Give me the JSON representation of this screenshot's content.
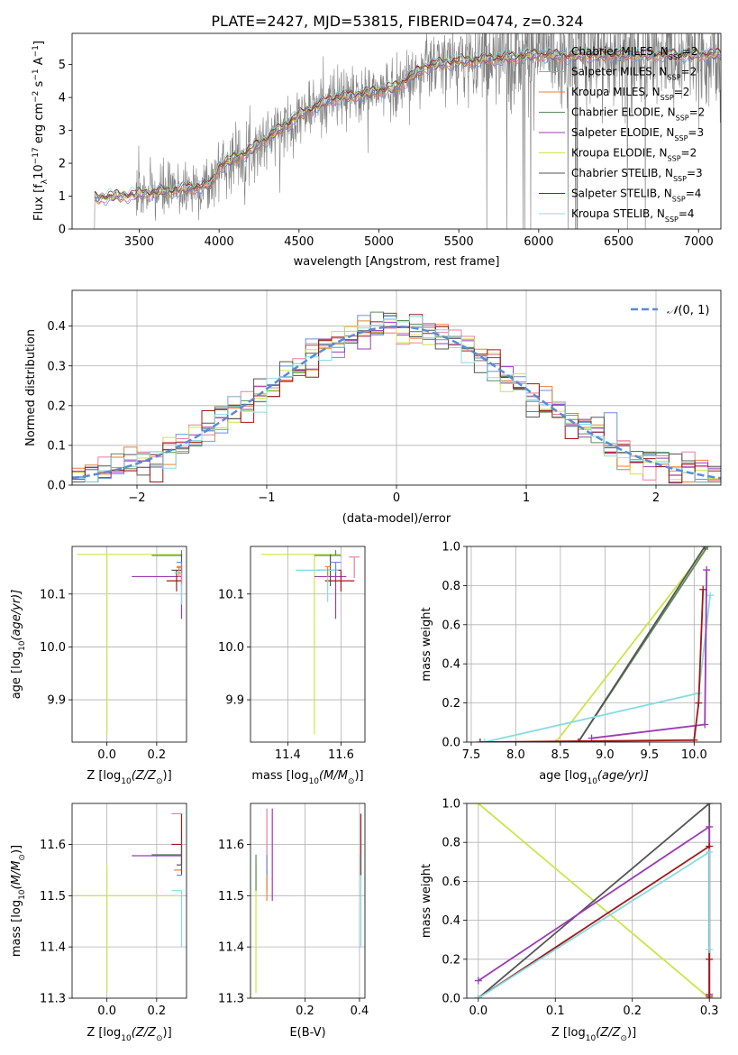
{
  "title": "PLATE=2427, MJD=53815, FIBERID=0474, z=0.324",
  "colors": {
    "Chabrier MILES": "#6a8fd8",
    "Salpeter MILES": "#e87fa3",
    "Kroupa MILES": "#e8823a",
    "Chabrier ELODIE": "#5e8a5e",
    "Salpeter ELODIE": "#9a3cb4",
    "Kroupa ELODIE": "#c9e64a",
    "Chabrier STELIB": "#555555",
    "Salpeter STELIB": "#a01818",
    "Kroupa STELIB": "#86dce0",
    "data": "#808080",
    "gauss": "#5b8bd6"
  },
  "chart_data": [
    {
      "type": "line",
      "xlabel": "wavelength [Angstrom, rest frame]",
      "ylabel": "Flux [f",
      "ylabel_sub": "λ",
      "ylabel_mid": "10",
      "ylabel_exp1": "−17",
      "ylabel_mid2": " erg cm",
      "ylabel_exp2": "−2",
      "ylabel_mid3": " s",
      "ylabel_exp3": "−1",
      "ylabel_mid4": " A",
      "ylabel_exp4": "−1",
      "ylabel_end": "]",
      "xlim": [
        3080,
        7140
      ],
      "ylim": [
        0,
        5.95
      ],
      "xticks": [
        "3500",
        "4000",
        "4500",
        "5000",
        "5500",
        "6000",
        "6500",
        "7000"
      ],
      "xtick_values": [
        3500,
        4000,
        4500,
        5000,
        5500,
        6000,
        6500,
        7000
      ],
      "yticks": [
        "0",
        "1",
        "2",
        "3",
        "4",
        "5"
      ],
      "ytick_values": [
        0,
        1,
        2,
        3,
        4,
        5
      ],
      "grid": false,
      "legend": "top-right",
      "continuum": {
        "x": [
          3220,
          3500,
          3700,
          3950,
          4000,
          4200,
          4500,
          4700,
          4900,
          5100,
          5300,
          5500,
          5800,
          6000,
          6200,
          6500,
          6800,
          7100
        ],
        "y": [
          0.95,
          1.05,
          1.15,
          1.35,
          1.9,
          2.4,
          3.45,
          3.95,
          4.1,
          4.3,
          4.95,
          5.1,
          5.2,
          5.3,
          5.25,
          5.3,
          5.3,
          5.3
        ]
      },
      "series": [
        {
          "name": "Chabrier MILES",
          "nssp": "2"
        },
        {
          "name": "Salpeter MILES",
          "nssp": "2"
        },
        {
          "name": "Kroupa MILES",
          "nssp": "2"
        },
        {
          "name": "Chabrier ELODIE",
          "nssp": "2"
        },
        {
          "name": "Salpeter ELODIE",
          "nssp": "3"
        },
        {
          "name": "Kroupa ELODIE",
          "nssp": "2"
        },
        {
          "name": "Chabrier STELIB",
          "nssp": "3"
        },
        {
          "name": "Salpeter STELIB",
          "nssp": "4"
        },
        {
          "name": "Kroupa STELIB",
          "nssp": "4"
        }
      ],
      "legend_prefix": ", N",
      "legend_sub": "SSP",
      "legend_eq": "="
    },
    {
      "type": "bar",
      "xlabel": "(data-model)/error",
      "ylabel": "Normed distribution",
      "xlim": [
        -2.5,
        2.5
      ],
      "ylim": [
        0,
        0.49
      ],
      "xticks": [
        "−2",
        "−1",
        "0",
        "1",
        "2"
      ],
      "xtick_values": [
        -2,
        -1,
        0,
        1,
        2
      ],
      "yticks": [
        "0.0",
        "0.1",
        "0.2",
        "0.3",
        "0.4"
      ],
      "ytick_values": [
        0,
        0.1,
        0.2,
        0.3,
        0.4
      ],
      "grid": true,
      "legend": "top-right",
      "gauss_label_N": "𝒩",
      "gauss_label_args": "(0, 1)",
      "bin_width": 0.1,
      "bin_start": -2.5
    },
    {
      "type": "scatter",
      "xlabel": "Z [log",
      "xlabel_sub": "10",
      "xlabel_rest": "(Z/Z",
      "xlabel_sun": "⊙",
      "xlabel_end": ")]",
      "ylabel": "age  [log",
      "ylabel_sub": "10",
      "ylabel_rest": "(age/yr)]",
      "xlim": [
        -0.14,
        0.32
      ],
      "ylim": [
        9.82,
        10.19
      ],
      "xticks": [
        "0.0",
        "0.2"
      ],
      "xtick_values": [
        0,
        0.2
      ],
      "yticks": [
        "9.9",
        "10.0",
        "10.1"
      ],
      "ytick_values": [
        9.9,
        10.0,
        10.1
      ],
      "grid": true,
      "points": [
        {
          "s": "Kroupa ELODIE",
          "x": 0.0,
          "y": 10.175,
          "xe": [
            0.12,
            0.3
          ],
          "ye": [
            0.34,
            0.0
          ]
        },
        {
          "s": "Chabrier ELODIE",
          "x": 0.3,
          "y": 10.173,
          "xe": [
            0.12,
            0.0
          ],
          "ye": [
            0.0,
            0.01
          ]
        },
        {
          "s": "Salpeter ELODIE",
          "x": 0.3,
          "y": 10.133,
          "xe": [
            0.2,
            0.0
          ],
          "ye": [
            0.08,
            0.02
          ]
        },
        {
          "s": "Chabrier STELIB",
          "x": 0.3,
          "y": 10.145,
          "xe": [
            0.04,
            0.0
          ],
          "ye": [
            0.03,
            0.03
          ]
        },
        {
          "s": "Salpeter STELIB",
          "x": 0.28,
          "y": 10.125,
          "xe": [
            0.04,
            0.02
          ],
          "ye": [
            0.02,
            0.02
          ]
        },
        {
          "s": "Kroupa STELIB",
          "x": 0.3,
          "y": 10.14,
          "xe": [
            0.03,
            0.0
          ],
          "ye": [
            0.06,
            0.0
          ]
        },
        {
          "s": "Salpeter MILES",
          "x": 0.3,
          "y": 10.15,
          "xe": [
            0.02,
            0.0
          ],
          "ye": [
            0.03,
            0.0
          ]
        },
        {
          "s": "Chabrier MILES",
          "x": 0.3,
          "y": 10.16,
          "xe": [
            0.02,
            0.0
          ],
          "ye": [
            0.02,
            0.0
          ]
        },
        {
          "s": "Kroupa MILES",
          "x": 0.29,
          "y": 10.152,
          "xe": [
            0.01,
            0.01
          ],
          "ye": [
            0.02,
            0.0
          ]
        }
      ]
    },
    {
      "type": "scatter",
      "xlabel": "mass [log",
      "xlabel_sub": "10",
      "xlabel_rest": "(M/M",
      "xlabel_sun": "⊙",
      "xlabel_end": ")]",
      "xlim": [
        11.26,
        11.69
      ],
      "ylim": [
        9.82,
        10.19
      ],
      "xticks": [
        "11.4",
        "11.6"
      ],
      "xtick_values": [
        11.4,
        11.6
      ],
      "yticks": [
        "9.9",
        "10.0",
        "10.1"
      ],
      "ytick_values": [
        9.9,
        10.0,
        10.1
      ],
      "grid": true,
      "points": [
        {
          "s": "Kroupa ELODIE",
          "x": 11.5,
          "y": 10.175,
          "xe": [
            0.2,
            0.1
          ],
          "ye": [
            0.34,
            0.0
          ]
        },
        {
          "s": "Chabrier ELODIE",
          "x": 11.58,
          "y": 10.173,
          "xe": [
            0.08,
            0.02
          ],
          "ye": [
            0.0,
            0.01
          ]
        },
        {
          "s": "Salpeter ELODIE",
          "x": 11.58,
          "y": 10.133,
          "xe": [
            0.08,
            0.04
          ],
          "ye": [
            0.08,
            0.02
          ]
        },
        {
          "s": "Chabrier STELIB",
          "x": 11.56,
          "y": 10.145,
          "xe": [
            0.05,
            0.04
          ],
          "ye": [
            0.03,
            0.03
          ]
        },
        {
          "s": "Salpeter STELIB",
          "x": 11.6,
          "y": 10.125,
          "xe": [
            0.06,
            0.05
          ],
          "ye": [
            0.02,
            0.02
          ]
        },
        {
          "s": "Kroupa STELIB",
          "x": 11.55,
          "y": 10.145,
          "xe": [
            0.12,
            0.04
          ],
          "ye": [
            0.06,
            0.0
          ]
        },
        {
          "s": "Salpeter MILES",
          "x": 11.65,
          "y": 10.17,
          "xe": [
            0.02,
            0.02
          ],
          "ye": [
            0.04,
            0.0
          ]
        },
        {
          "s": "Chabrier MILES",
          "x": 11.58,
          "y": 10.16,
          "xe": [
            0.02,
            0.02
          ],
          "ye": [
            0.02,
            0.0
          ]
        },
        {
          "s": "Kroupa MILES",
          "x": 11.55,
          "y": 10.152,
          "xe": [
            0.01,
            0.01
          ],
          "ye": [
            0.02,
            0.0
          ]
        }
      ]
    },
    {
      "type": "line",
      "xlabel": "age  [log",
      "xlabel_sub": "10",
      "xlabel_rest": "(age/yr)]",
      "ylabel": "mass weight",
      "xlim": [
        7.45,
        10.3
      ],
      "ylim": [
        0,
        1.0
      ],
      "xticks": [
        "7.5",
        "8.0",
        "8.5",
        "9.0",
        "9.5",
        "10.0"
      ],
      "xtick_values": [
        7.5,
        8.0,
        8.5,
        9.0,
        9.5,
        10.0
      ],
      "yticks": [
        "0.0",
        "0.2",
        "0.4",
        "0.6",
        "0.8",
        "1.0"
      ],
      "ytick_values": [
        0,
        0.2,
        0.4,
        0.6,
        0.8,
        1.0
      ],
      "grid": true,
      "series": [
        {
          "s": "Kroupa ELODIE",
          "x": [
            8.45,
            10.15
          ],
          "y": [
            0.0,
            1.0
          ]
        },
        {
          "s": "Chabrier ELODIE",
          "x": [
            8.7,
            10.15
          ],
          "y": [
            0.0,
            1.0
          ]
        },
        {
          "s": "Chabrier STELIB",
          "x": [
            8.7,
            10.12
          ],
          "y": [
            0.0,
            1.0
          ]
        },
        {
          "s": "Kroupa STELIB",
          "x": [
            7.65,
            10.05,
            10.18
          ],
          "y": [
            0.0,
            0.25,
            0.75
          ]
        },
        {
          "s": "Salpeter ELODIE",
          "x": [
            8.85,
            10.12,
            10.14
          ],
          "y": [
            0.02,
            0.09,
            0.88
          ]
        },
        {
          "s": "Salpeter STELIB",
          "x": [
            7.6,
            10.0,
            10.05,
            10.1
          ],
          "y": [
            0.0,
            0.01,
            0.2,
            0.78
          ]
        }
      ]
    },
    {
      "type": "scatter",
      "xlabel": "Z [log",
      "xlabel_sub": "10",
      "xlabel_rest": "(Z/Z",
      "xlabel_sun": "⊙",
      "xlabel_end": ")]",
      "ylabel": "mass [log",
      "ylabel_sub": "10",
      "ylabel_rest": "(M/M",
      "ylabel_sun": "⊙",
      "ylabel_end": ")]",
      "xlim": [
        -0.14,
        0.32
      ],
      "ylim": [
        11.3,
        11.68
      ],
      "xticks": [
        "0.0",
        "0.2"
      ],
      "xtick_values": [
        0,
        0.2
      ],
      "yticks": [
        "11.3",
        "11.4",
        "11.5",
        "11.6"
      ],
      "ytick_values": [
        11.3,
        11.4,
        11.5,
        11.6
      ],
      "grid": true,
      "points": [
        {
          "s": "Kroupa ELODIE",
          "x": 0.0,
          "y": 11.5,
          "xe": [
            0.12,
            0.3
          ],
          "ye": [
            0.19,
            0.06
          ]
        },
        {
          "s": "Salpeter ELODIE",
          "x": 0.3,
          "y": 11.578,
          "xe": [
            0.2,
            0.0
          ],
          "ye": [
            0.0,
            0.0
          ]
        },
        {
          "s": "Chabrier ELODIE",
          "x": 0.3,
          "y": 11.58,
          "xe": [
            0.12,
            0.0
          ],
          "ye": [
            0.0,
            0.0
          ]
        },
        {
          "s": "Salpeter STELIB",
          "x": 0.3,
          "y": 11.6,
          "xe": [
            0.04,
            0.0
          ],
          "ye": [
            0.04,
            0.06
          ]
        },
        {
          "s": "Salpeter MILES",
          "x": 0.3,
          "y": 11.66,
          "xe": [
            0.04,
            0.0
          ],
          "ye": [
            0.0,
            0.0
          ]
        },
        {
          "s": "Kroupa MILES",
          "x": 0.29,
          "y": 11.55,
          "xe": [
            0.02,
            0.01
          ],
          "ye": [
            0.0,
            0.0
          ]
        },
        {
          "s": "Chabrier STELIB",
          "x": 0.3,
          "y": 11.56,
          "xe": [
            0.02,
            0.0
          ],
          "ye": [
            0.02,
            0.05
          ]
        },
        {
          "s": "Kroupa STELIB",
          "x": 0.3,
          "y": 11.51,
          "xe": [
            0.04,
            0.0
          ],
          "ye": [
            0.11,
            0.0
          ]
        },
        {
          "s": "Chabrier MILES",
          "x": 0.3,
          "y": 11.54,
          "xe": [
            0.02,
            0.0
          ],
          "ye": [
            0.0,
            0.0
          ]
        }
      ]
    },
    {
      "type": "scatter",
      "xlabel": "E(B-V)",
      "xlim": [
        0.0,
        0.42
      ],
      "ylim": [
        11.3,
        11.68
      ],
      "xticks": [
        "0.2",
        "0.4"
      ],
      "xtick_values": [
        0.2,
        0.4
      ],
      "yticks": [
        "11.3",
        "11.4",
        "11.5",
        "11.6"
      ],
      "ytick_values": [
        11.3,
        11.4,
        11.5,
        11.6
      ],
      "grid": true,
      "points": [
        {
          "s": "Kroupa ELODIE",
          "x": 0.02,
          "y": 11.44,
          "xe": [
            0,
            0
          ],
          "ye": [
            0.13,
            0.12
          ]
        },
        {
          "s": "Chabrier ELODIE",
          "x": 0.02,
          "y": 11.55,
          "xe": [
            0,
            0
          ],
          "ye": [
            0.04,
            0.03
          ]
        },
        {
          "s": "Salpeter MILES",
          "x": 0.06,
          "y": 11.6,
          "xe": [
            0,
            0
          ],
          "ye": [
            0.09,
            0.07
          ]
        },
        {
          "s": "Kroupa MILES",
          "x": 0.06,
          "y": 11.52,
          "xe": [
            0,
            0
          ],
          "ye": [
            0.03,
            0.03
          ]
        },
        {
          "s": "Salpeter ELODIE",
          "x": 0.08,
          "y": 11.58,
          "xe": [
            0,
            0
          ],
          "ye": [
            0.09,
            0.09
          ]
        },
        {
          "s": "Chabrier MILES",
          "x": 0.06,
          "y": 11.56,
          "xe": [
            0,
            0
          ],
          "ye": [
            0.02,
            0.02
          ]
        },
        {
          "s": "Salpeter STELIB",
          "x": 0.405,
          "y": 11.6,
          "xe": [
            0,
            0
          ],
          "ye": [
            0.06,
            0.06
          ]
        },
        {
          "s": "Kroupa STELIB",
          "x": 0.405,
          "y": 11.48,
          "xe": [
            0,
            0
          ],
          "ye": [
            0.08,
            0.07
          ]
        },
        {
          "s": "Chabrier STELIB",
          "x": 0.405,
          "y": 11.56,
          "xe": [
            0,
            0
          ],
          "ye": [
            0.02,
            0.02
          ]
        }
      ]
    },
    {
      "type": "line",
      "xlabel": "Z [log",
      "xlabel_sub": "10",
      "xlabel_rest": "(Z/Z",
      "xlabel_sun": "⊙",
      "xlabel_end": ")]",
      "ylabel": "mass weight",
      "xlim": [
        -0.015,
        0.315
      ],
      "ylim": [
        0,
        1.0
      ],
      "xticks": [
        "0.0",
        "0.1",
        "0.2",
        "0.3"
      ],
      "xtick_values": [
        0,
        0.1,
        0.2,
        0.3
      ],
      "yticks": [
        "0.0",
        "0.2",
        "0.4",
        "0.6",
        "0.8",
        "1.0"
      ],
      "ytick_values": [
        0,
        0.2,
        0.4,
        0.6,
        0.8,
        1.0
      ],
      "grid": true,
      "series": [
        {
          "s": "Kroupa ELODIE",
          "x": [
            0.0,
            0.3
          ],
          "y": [
            1.0,
            0.0
          ]
        },
        {
          "s": "Chabrier STELIB",
          "x": [
            0.0,
            0.3,
            0.3
          ],
          "y": [
            0.0,
            1.0,
            0.0
          ]
        },
        {
          "s": "Salpeter ELODIE",
          "x": [
            0.0,
            0.3,
            0.3
          ],
          "y": [
            0.09,
            0.88,
            0.02
          ]
        },
        {
          "s": "Salpeter STELIB",
          "x": [
            0.0,
            0.3,
            0.3,
            0.3
          ],
          "y": [
            0.0,
            0.78,
            0.2,
            0.01
          ]
        },
        {
          "s": "Kroupa STELIB",
          "x": [
            0.0,
            0.3,
            0.3
          ],
          "y": [
            0.0,
            0.75,
            0.25
          ]
        }
      ]
    }
  ]
}
